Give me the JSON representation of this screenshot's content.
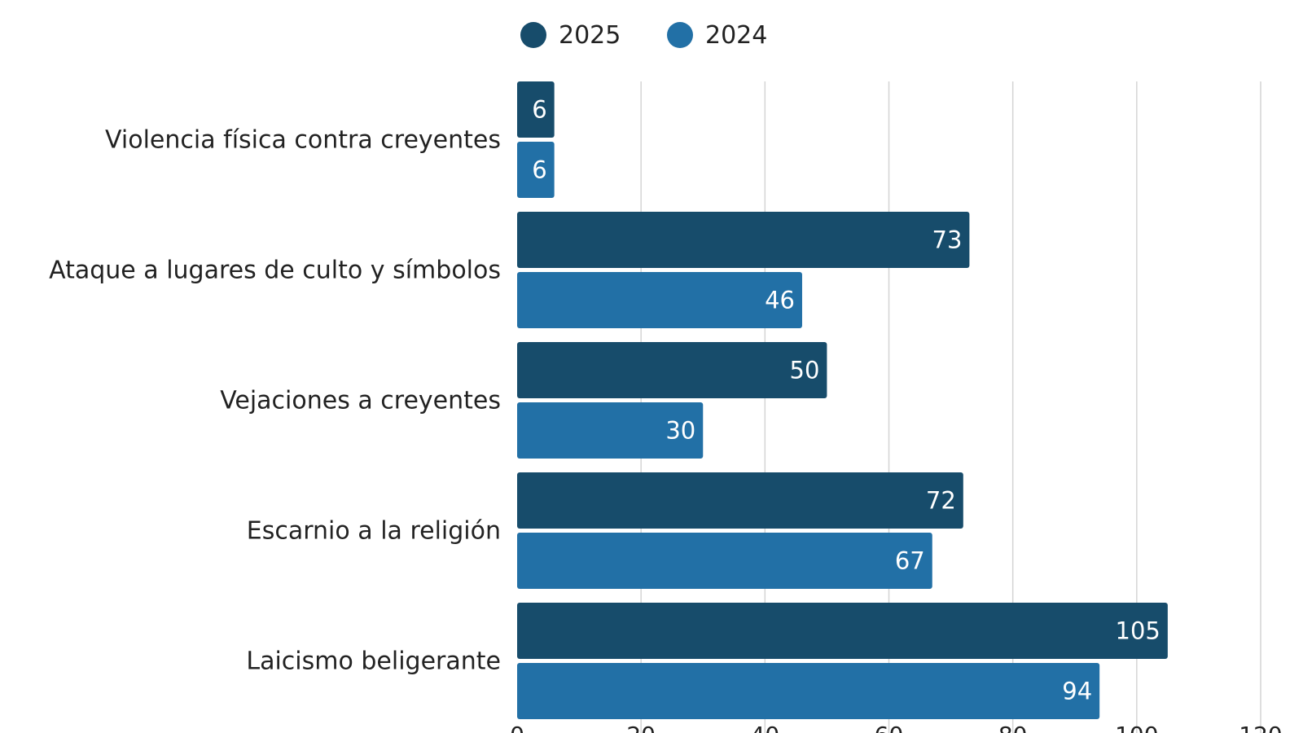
{
  "chart_data": {
    "type": "bar",
    "orientation": "horizontal",
    "categories": [
      "Violencia física contra creyentes",
      "Ataque a lugares de culto y símbolos",
      "Vejaciones a creyentes",
      "Escarnio a la religión",
      "Laicismo beligerante"
    ],
    "series": [
      {
        "name": "2025",
        "color": "#174c6b",
        "values": [
          6,
          73,
          50,
          72,
          105
        ]
      },
      {
        "name": "2024",
        "color": "#2270a6",
        "values": [
          6,
          46,
          30,
          67,
          94
        ]
      }
    ],
    "xlim": [
      0,
      120
    ],
    "xticks": [
      0,
      20,
      40,
      60,
      80,
      100,
      120
    ],
    "grid": true,
    "legend_position": "top",
    "data_labels": true
  }
}
